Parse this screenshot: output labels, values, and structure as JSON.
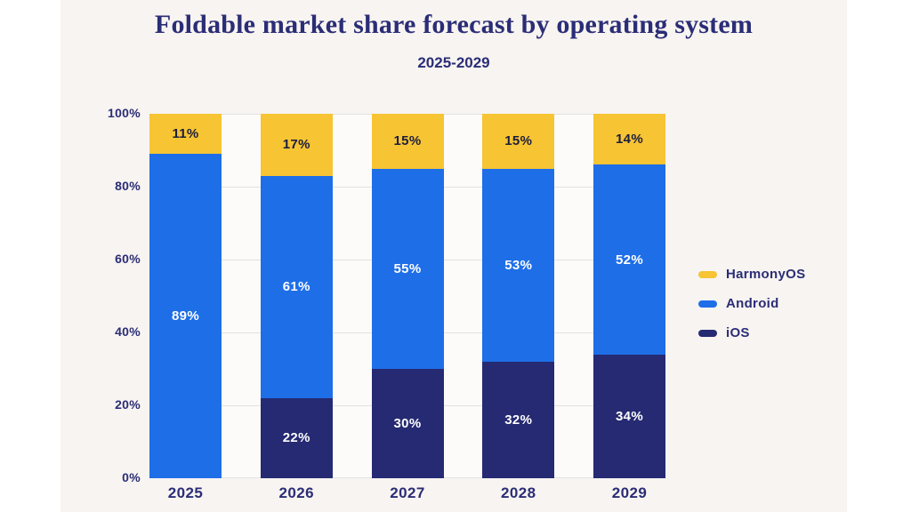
{
  "page": {
    "outer_background": "#ffffff",
    "card_background": "#f7f4f1",
    "plot_background": "#fcfbfa",
    "gridline_color": "#e4e1de",
    "text_color": "#2b2d76"
  },
  "chart_data": {
    "type": "bar",
    "stacked": true,
    "title": "Foldable market share forecast by operating system",
    "subtitle": "2025-2029",
    "categories": [
      "2025",
      "2026",
      "2027",
      "2028",
      "2029"
    ],
    "series": [
      {
        "name": "iOS",
        "color": "#252a72",
        "label_color": "#ffffff",
        "values": [
          0,
          22,
          30,
          32,
          34
        ]
      },
      {
        "name": "Android",
        "color": "#1e6ee8",
        "label_color": "#ffffff",
        "values": [
          89,
          61,
          55,
          53,
          52
        ]
      },
      {
        "name": "HarmonyOS",
        "color": "#f7c433",
        "label_color": "#1c1e3d",
        "values": [
          11,
          17,
          15,
          15,
          14
        ]
      }
    ],
    "value_suffix": "%",
    "ylim": [
      0,
      100
    ],
    "y_ticks": [
      0,
      20,
      40,
      60,
      80,
      100
    ],
    "y_tick_suffix": "%",
    "grid": true,
    "legend_position": "right",
    "legend_order_top_to_bottom": [
      "HarmonyOS",
      "Android",
      "iOS"
    ]
  }
}
